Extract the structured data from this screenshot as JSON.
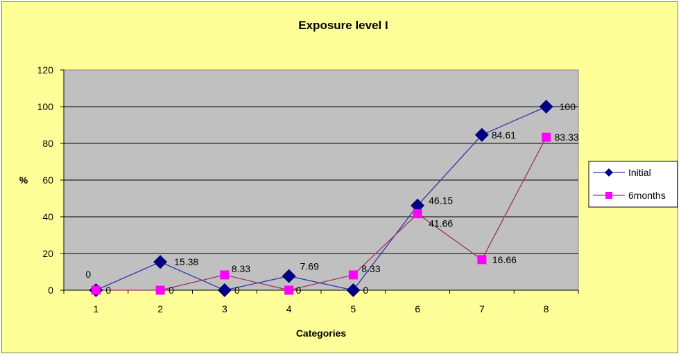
{
  "chart_data": {
    "type": "line",
    "title": "Exposure level  I",
    "xlabel": "Categories",
    "ylabel": "%",
    "categories": [
      "1",
      "2",
      "3",
      "4",
      "5",
      "6",
      "7",
      "8"
    ],
    "ylim": [
      0,
      120
    ],
    "yticks": [
      "0",
      "20",
      "40",
      "60",
      "80",
      "100",
      "120"
    ],
    "grid": "horizontal major lines",
    "legend_position": "right",
    "series": [
      {
        "name": "Initial",
        "values": [
          0,
          15.38,
          0,
          7.69,
          0,
          46.15,
          84.61,
          100
        ],
        "labels": [
          "0",
          "15.38",
          "0",
          "7.69",
          "0",
          "46.15",
          "84.61",
          "100"
        ],
        "color": "#000080",
        "marker": "diamond"
      },
      {
        "name": "6months",
        "values": [
          0,
          0,
          8.33,
          0,
          8.33,
          41.66,
          16.66,
          83.33
        ],
        "labels": [
          "0",
          "0",
          "8.33",
          "0",
          "8.33",
          "41.66",
          "16.66",
          "83.33"
        ],
        "color": "#ff00ff",
        "marker": "square"
      }
    ],
    "colors": {
      "chart_background": "#ffff99",
      "plot_background": "#c0c0c0",
      "gridline": "#000000",
      "initial_line": "#3333aa",
      "sixmonths_line": "#993366"
    }
  }
}
